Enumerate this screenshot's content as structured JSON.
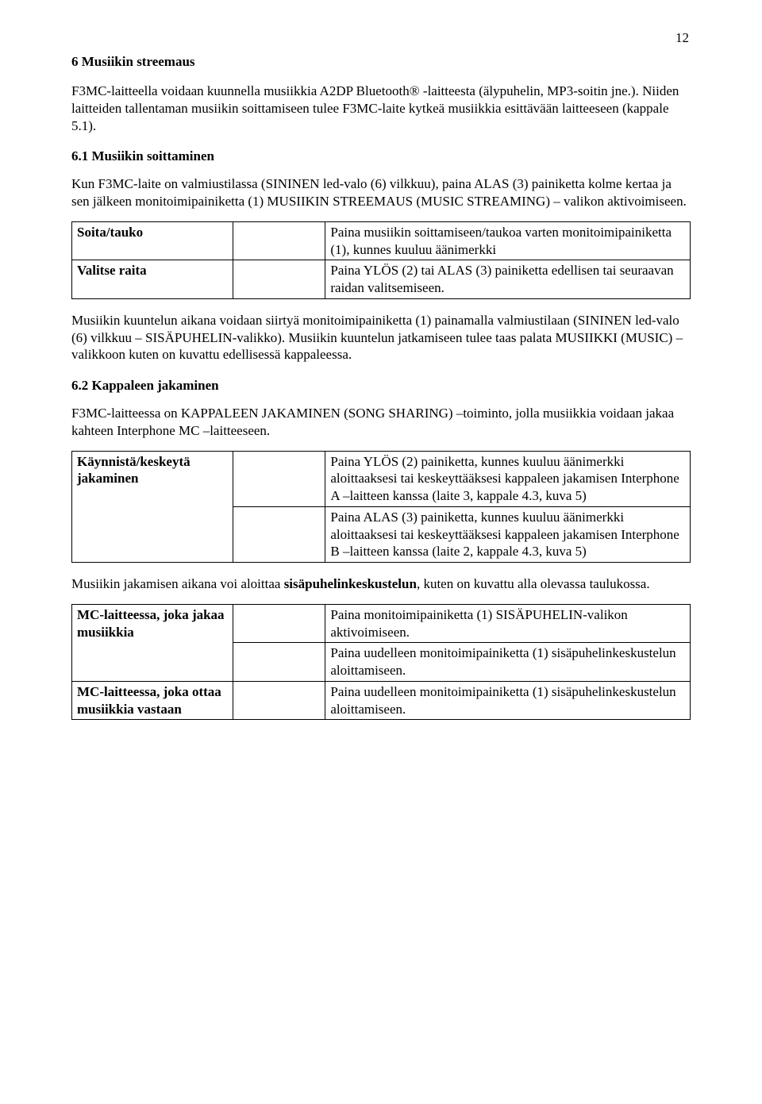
{
  "pageNumber": "12",
  "heading1": "6   Musiikin streemaus",
  "para1": "F3MC-laitteella voidaan kuunnella musiikkia A2DP Bluetooth® -laitteesta (älypuhelin, MP3-soitin jne.). Niiden laitteiden tallentaman musiikin soittamiseen tulee F3MC-laite kytkeä musiikkia esittävään laitteeseen (kappale 5.1).",
  "heading2": "6.1 Musiikin soittaminen",
  "para2": "Kun F3MC-laite on valmiustilassa (SININEN led-valo (6) vilkkuu), paina ALAS (3) painiketta kolme kertaa ja sen jälkeen monitoimipainiketta (1) MUSIIKIN STREEMAUS (MUSIC STREAMING) – valikon aktivoimiseen.",
  "table1": {
    "rows": [
      {
        "label": "Soita/tauko",
        "mid": "",
        "desc": "Paina musiikin soittamiseen/taukoa varten monitoimipainiketta (1), kunnes kuuluu äänimerkki"
      },
      {
        "label": "Valitse raita",
        "mid": "",
        "desc": "Paina YLÖS (2) tai ALAS (3) painiketta edellisen tai seuraavan raidan valitsemiseen."
      }
    ]
  },
  "para3": "Musiikin kuuntelun aikana voidaan siirtyä monitoimipainiketta (1) painamalla valmiustilaan (SININEN led-valo (6) vilkkuu – SISÄPUHELIN-valikko). Musiikin kuuntelun jatkamiseen tulee taas palata MUSIIKKI (MUSIC) –valikkoon kuten on kuvattu edellisessä kappaleessa.",
  "heading3": "6.2 Kappaleen jakaminen",
  "para4": "F3MC-laitteessa on KAPPALEEN JAKAMINEN (SONG SHARING) –toiminto, jolla musiikkia voidaan jakaa kahteen Interphone MC –laitteeseen.",
  "table2": {
    "label": "Käynnistä/keskeytä jakaminen",
    "rows": [
      {
        "mid": "",
        "desc": "Paina YLÖS (2) painiketta, kunnes kuuluu äänimerkki aloittaaksesi tai keskeyttääksesi kappaleen jakamisen Interphone A –laitteen kanssa (laite 3, kappale 4.3, kuva 5)"
      },
      {
        "mid": "",
        "desc": "Paina ALAS (3) painiketta, kunnes kuuluu äänimerkki aloittaaksesi tai keskeyttääksesi kappaleen jakamisen Interphone B –laitteen kanssa (laite 2, kappale 4.3, kuva 5)"
      }
    ]
  },
  "para5_prefix": "Musiikin jakamisen aikana voi aloittaa ",
  "para5_bold": "sisäpuhelinkeskustelun",
  "para5_suffix": ", kuten on kuvattu alla olevassa taulukossa.",
  "table3": {
    "group1Label": "MC-laitteessa, joka jakaa musiikkia",
    "group2Label": "MC-laitteessa, joka ottaa musiikkia vastaan",
    "rows1": [
      {
        "mid": "",
        "desc": "Paina monitoimipainiketta (1) SISÄPUHELIN-valikon aktivoimiseen."
      },
      {
        "mid": "",
        "desc": "Paina uudelleen monitoimipainiketta (1) sisäpuhelinkeskustelun aloittamiseen."
      }
    ],
    "rows2": [
      {
        "mid": "",
        "desc": "Paina uudelleen monitoimipainiketta (1) sisäpuhelinkeskustelun aloittamiseen."
      }
    ]
  }
}
